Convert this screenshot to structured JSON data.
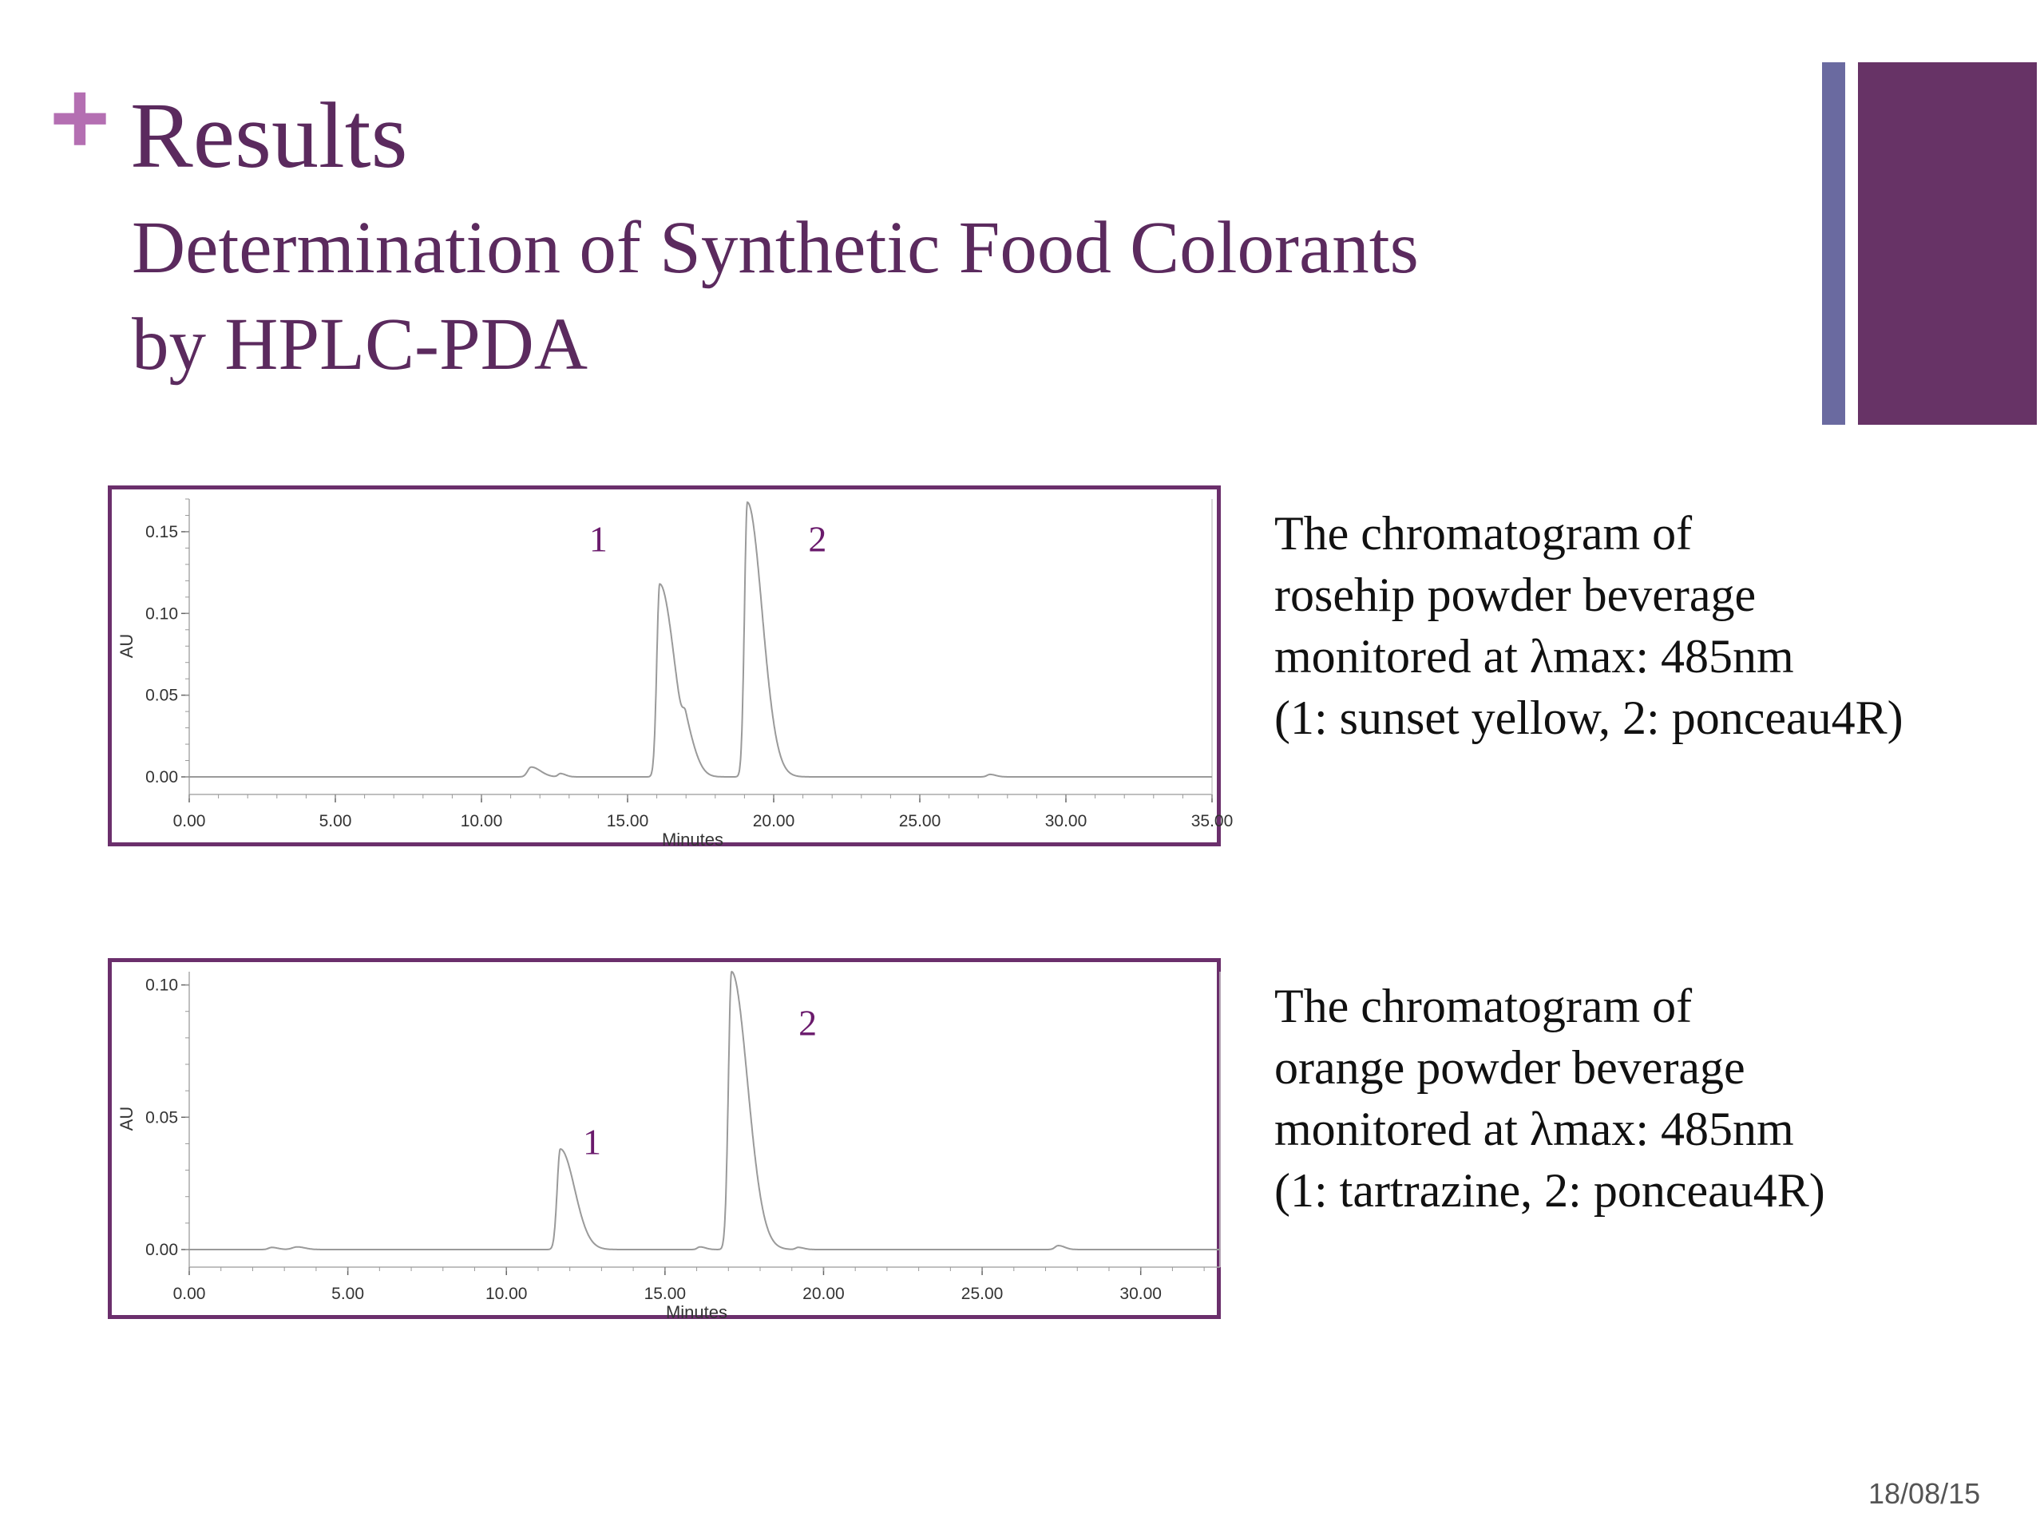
{
  "slide": {
    "plus": "+",
    "title": "Results",
    "subtitle_line1": "Determination of Synthetic Food Colorants",
    "subtitle_line2": "by HPLC-PDA",
    "date": "18/08/15",
    "colors": {
      "plus": "#b46fb2",
      "title": "#5b2a5e",
      "bar_thin": "#6a6aa0",
      "bar_thick": "#673366",
      "frame": "#6b2f6c",
      "peak_label": "#6a1a6c",
      "trace": "#9a9a9a"
    }
  },
  "captions": [
    {
      "line1": "The chromatogram of",
      "line2": "rosehip powder beverage",
      "line3": "monitored at λmax: 485nm",
      "line4": "(1: sunset yellow, 2: ponceau4R)"
    },
    {
      "line1": "The chromatogram of",
      "line2": "orange powder beverage",
      "line3": "monitored at λmax: 485nm",
      "line4": "(1: tartrazine, 2: ponceau4R)"
    }
  ],
  "chart_data": [
    {
      "type": "line",
      "xlabel": "Minutes",
      "ylabel": "AU",
      "xlim": [
        0,
        35
      ],
      "ylim": [
        0,
        0.17
      ],
      "x_ticks": [
        "0.00",
        "5.00",
        "10.00",
        "15.00",
        "20.00",
        "25.00",
        "30.00",
        "35.00"
      ],
      "y_ticks": [
        "0.00",
        "0.05",
        "0.10",
        "0.15"
      ],
      "grid": false,
      "baseline": 0.0,
      "peaks": [
        {
          "rt": 11.7,
          "height": 0.006,
          "width": 0.12,
          "tail": 0.2
        },
        {
          "rt": 12.7,
          "height": 0.002,
          "width": 0.08,
          "tail": 0.1
        },
        {
          "rt": 16.1,
          "height": 0.118,
          "width": 0.1,
          "tail": 0.4
        },
        {
          "rt": 17.0,
          "height": 0.016,
          "width": 0.1,
          "tail": 0.25
        },
        {
          "rt": 19.1,
          "height": 0.168,
          "width": 0.1,
          "tail": 0.4
        },
        {
          "rt": 27.4,
          "height": 0.0015,
          "width": 0.1,
          "tail": 0.1
        }
      ],
      "peak_labels": [
        {
          "text": "1",
          "x": 14.0,
          "y": 0.138
        },
        {
          "text": "2",
          "x": 21.5,
          "y": 0.138
        }
      ]
    },
    {
      "type": "line",
      "xlabel": "Minutes",
      "ylabel": "AU",
      "xlim": [
        0,
        32.5
      ],
      "ylim": [
        0,
        0.105
      ],
      "x_ticks": [
        "0.00",
        "5.00",
        "10.00",
        "15.00",
        "20.00",
        "25.00",
        "30.00"
      ],
      "y_ticks": [
        "0.00",
        "0.05",
        "0.10"
      ],
      "grid": false,
      "baseline": 0.0,
      "peaks": [
        {
          "rt": 2.6,
          "height": 0.0008,
          "width": 0.1,
          "tail": 0.1
        },
        {
          "rt": 3.4,
          "height": 0.001,
          "width": 0.15,
          "tail": 0.1
        },
        {
          "rt": 11.7,
          "height": 0.038,
          "width": 0.1,
          "tail": 0.35
        },
        {
          "rt": 16.1,
          "height": 0.001,
          "width": 0.08,
          "tail": 0.1
        },
        {
          "rt": 17.1,
          "height": 0.105,
          "width": 0.1,
          "tail": 0.4
        },
        {
          "rt": 19.2,
          "height": 0.0008,
          "width": 0.08,
          "tail": 0.1
        },
        {
          "rt": 27.4,
          "height": 0.0015,
          "width": 0.1,
          "tail": 0.1
        }
      ],
      "peak_labels": [
        {
          "text": "1",
          "x": 12.7,
          "y": 0.036
        },
        {
          "text": "2",
          "x": 19.5,
          "y": 0.081
        }
      ]
    }
  ]
}
